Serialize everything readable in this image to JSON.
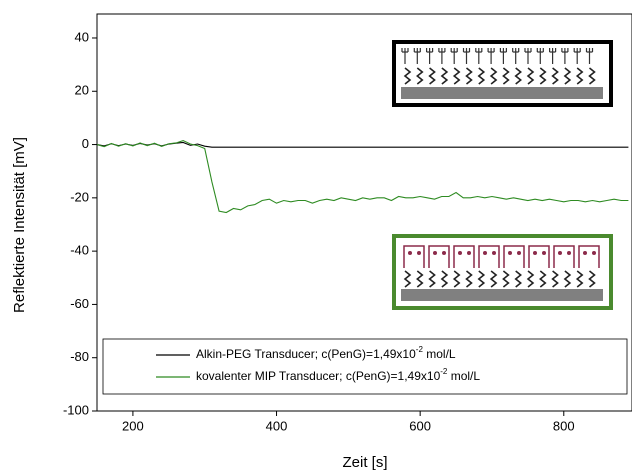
{
  "chart_data": {
    "type": "line",
    "x_label": "Zeit [s]",
    "y_label": "Reflektierte Intensität [mV]",
    "xlim": [
      150,
      895
    ],
    "ylim": [
      -100,
      49
    ],
    "xticks": [
      200,
      400,
      600,
      800
    ],
    "yticks": [
      -100,
      -80,
      -60,
      -40,
      -20,
      0,
      20,
      40
    ],
    "x": [
      150,
      160,
      170,
      180,
      190,
      200,
      210,
      220,
      230,
      240,
      250,
      260,
      270,
      280,
      290,
      300,
      310,
      320,
      330,
      340,
      350,
      360,
      370,
      380,
      390,
      400,
      410,
      420,
      430,
      440,
      450,
      460,
      470,
      480,
      490,
      500,
      510,
      520,
      530,
      540,
      550,
      560,
      570,
      580,
      590,
      600,
      610,
      620,
      630,
      640,
      650,
      660,
      670,
      680,
      690,
      700,
      710,
      720,
      730,
      740,
      750,
      760,
      770,
      780,
      790,
      800,
      810,
      820,
      830,
      840,
      850,
      860,
      870,
      880,
      890
    ],
    "series": [
      {
        "name": [
          "Alkin-PEG Transducer; c(PenG)=1,49x10",
          "-2",
          " mol/L"
        ],
        "color": "#000000",
        "values": [
          0,
          -0.5,
          0.3,
          -0.4,
          0.2,
          -0.3,
          0.4,
          -0.2,
          0.3,
          -0.5,
          0.2,
          0.5,
          0.8,
          -0.3,
          0.2,
          -0.6,
          -1,
          -1,
          -1,
          -1,
          -1,
          -1,
          -1,
          -1,
          -1,
          -1,
          -1,
          -1,
          -1,
          -1,
          -1,
          -1,
          -1,
          -1,
          -1,
          -1,
          -1,
          -1,
          -1,
          -1,
          -1,
          -1,
          -1,
          -1,
          -1,
          -1,
          -1,
          -1,
          -1,
          -1,
          -1,
          -1,
          -1,
          -1,
          -1,
          -1,
          -1,
          -1,
          -1,
          -1,
          -1,
          -1,
          -1,
          -1,
          -1,
          -1,
          -1,
          -1,
          -1,
          -1,
          -1,
          -1,
          -1,
          -1,
          -1
        ]
      },
      {
        "name": [
          "kovalenter MIP Transducer; c(PenG)=1,49x10",
          "-2",
          " mol/L"
        ],
        "color": "#2e8b22",
        "values": [
          0,
          -0.8,
          0.4,
          -0.6,
          0.3,
          -0.5,
          0.6,
          -0.4,
          0.5,
          -0.7,
          0.3,
          0.6,
          1.5,
          0.2,
          -0.4,
          -1.5,
          -14,
          -25,
          -25.5,
          -24,
          -24.5,
          -23,
          -22.5,
          -21,
          -20.5,
          -22,
          -21,
          -21.5,
          -21,
          -21,
          -22,
          -21,
          -20.5,
          -21,
          -20,
          -20.5,
          -21,
          -20,
          -20.5,
          -20,
          -20,
          -21,
          -19.5,
          -20,
          -20,
          -19.5,
          -20,
          -20.5,
          -19.5,
          -19.5,
          -18,
          -20,
          -20,
          -19.5,
          -20,
          -19.5,
          -20,
          -20.5,
          -20,
          -20.5,
          -21,
          -20.5,
          -21,
          -20.5,
          -21,
          -21.5,
          -21,
          -21,
          -21.5,
          -21,
          -21.5,
          -21,
          -20.5,
          -21,
          -21
        ]
      }
    ]
  }
}
